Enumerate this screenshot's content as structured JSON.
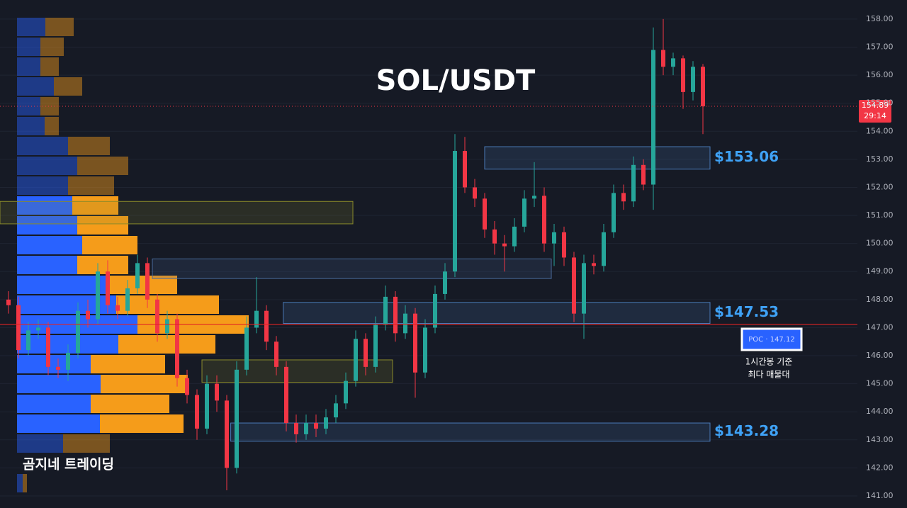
{
  "chart_data": {
    "type": "candlestick",
    "title": "SOL/USDT",
    "watermark": "곰지네 트레이딩",
    "ylim": [
      140.57,
      158.68
    ],
    "yticks": [
      {
        "value": 141,
        "label": "141.00"
      },
      {
        "value": 142,
        "label": "142.00"
      },
      {
        "value": 143,
        "label": "143.00"
      },
      {
        "value": 144,
        "label": "144.00"
      },
      {
        "value": 145,
        "label": "145.00"
      },
      {
        "value": 146,
        "label": "146.00"
      },
      {
        "value": 147,
        "label": "147.00"
      },
      {
        "value": 148,
        "label": "148.00"
      },
      {
        "value": 149,
        "label": "149.00"
      },
      {
        "value": 150,
        "label": "150.00"
      },
      {
        "value": 151,
        "label": "151.00"
      },
      {
        "value": 152,
        "label": "152.00"
      },
      {
        "value": 153,
        "label": "153.00"
      },
      {
        "value": 154,
        "label": "154.00"
      },
      {
        "value": 155,
        "label": "155.00"
      },
      {
        "value": 156,
        "label": "156.00"
      },
      {
        "value": 157,
        "label": "157.00"
      },
      {
        "value": 158,
        "label": "158.00"
      }
    ],
    "up_color": "#26a69a",
    "down_color": "#f23645",
    "open": [
      148.0,
      147.8,
      146.2,
      146.9,
      147.0,
      145.6,
      145.5,
      146.1,
      147.6,
      147.3,
      149.0,
      147.8,
      147.6,
      148.4,
      149.3,
      148.0,
      146.8,
      147.3,
      145.2,
      144.6,
      143.4,
      145.0,
      144.4,
      142.0,
      145.5,
      147.0,
      147.6,
      146.5,
      145.6,
      143.6,
      143.2,
      143.6,
      143.4,
      143.8,
      144.3,
      145.1,
      146.6,
      145.6,
      147.1,
      148.1,
      146.8,
      147.5,
      145.4,
      147.0,
      148.2,
      149.0,
      153.3,
      152.0,
      151.6,
      150.5,
      150.0,
      149.9,
      150.6,
      151.6,
      151.7,
      150.0,
      150.4,
      149.5,
      147.5,
      149.3,
      149.2,
      150.4,
      151.8,
      151.5,
      152.8,
      152.1,
      156.9,
      156.3,
      156.6,
      155.4,
      156.3
    ],
    "high": [
      148.3,
      148.1,
      147.2,
      147.3,
      147.2,
      145.9,
      146.4,
      147.9,
      148.0,
      149.3,
      149.4,
      148.1,
      148.7,
      149.6,
      149.5,
      148.2,
      147.6,
      147.5,
      145.5,
      144.8,
      145.3,
      145.3,
      144.6,
      145.8,
      147.4,
      148.8,
      147.8,
      146.7,
      145.8,
      143.9,
      143.9,
      143.9,
      144.1,
      144.6,
      145.4,
      146.9,
      146.8,
      147.4,
      148.5,
      148.3,
      147.8,
      147.7,
      147.3,
      148.5,
      149.3,
      153.9,
      153.8,
      152.3,
      151.8,
      150.8,
      150.3,
      150.9,
      151.9,
      152.9,
      152.0,
      150.7,
      150.6,
      149.7,
      149.6,
      149.6,
      150.7,
      152.1,
      152.1,
      153.1,
      153.0,
      157.7,
      158.0,
      156.8,
      156.7,
      156.5,
      156.4
    ],
    "low": [
      147.5,
      145.9,
      146.0,
      146.6,
      145.3,
      145.2,
      145.1,
      145.9,
      147.0,
      147.1,
      147.5,
      147.3,
      147.4,
      148.2,
      147.7,
      146.5,
      146.6,
      144.9,
      144.3,
      143.0,
      143.2,
      144.0,
      141.2,
      141.8,
      145.3,
      146.8,
      146.2,
      145.3,
      143.3,
      142.9,
      143.0,
      143.1,
      143.2,
      143.6,
      144.1,
      144.9,
      145.3,
      145.4,
      146.9,
      146.5,
      146.6,
      144.5,
      145.2,
      146.8,
      148.0,
      148.8,
      151.8,
      151.3,
      150.2,
      149.6,
      149.0,
      149.7,
      150.4,
      151.3,
      149.7,
      149.2,
      149.2,
      147.2,
      146.6,
      148.9,
      149.0,
      150.2,
      151.2,
      151.3,
      151.9,
      151.2,
      156.0,
      156.0,
      154.8,
      155.1,
      153.9
    ],
    "close": [
      147.8,
      146.2,
      146.9,
      147.0,
      145.6,
      145.5,
      146.1,
      147.6,
      147.3,
      149.0,
      147.8,
      147.6,
      148.4,
      149.3,
      148.0,
      146.8,
      147.3,
      145.2,
      144.6,
      143.4,
      145.0,
      144.4,
      142.0,
      145.5,
      147.0,
      147.6,
      146.5,
      145.6,
      143.6,
      143.2,
      143.6,
      143.4,
      143.8,
      144.3,
      145.1,
      146.6,
      145.6,
      147.1,
      148.1,
      146.8,
      147.5,
      145.4,
      147.0,
      148.2,
      149.0,
      153.3,
      152.0,
      151.6,
      150.5,
      150.0,
      149.9,
      150.6,
      151.6,
      151.7,
      150.0,
      150.4,
      149.5,
      147.5,
      149.3,
      149.2,
      150.4,
      151.8,
      151.5,
      152.8,
      152.1,
      156.9,
      156.3,
      156.6,
      155.4,
      156.3,
      154.89
    ],
    "volume_profile": {
      "buy_color": "#2962ff",
      "sell_color": "#f59c1a",
      "buy": [
        40,
        33,
        33,
        52,
        33,
        39,
        72,
        85,
        72,
        78,
        85,
        92,
        85,
        126,
        140,
        170,
        143,
        104,
        118,
        104,
        117,
        65,
        0,
        8
      ],
      "sell": [
        40,
        33,
        26,
        40,
        26,
        20,
        59,
        72,
        65,
        65,
        72,
        78,
        72,
        100,
        145,
        157,
        137,
        105,
        123,
        111,
        118,
        66,
        0,
        6
      ],
      "value_area_rows": [
        9,
        20
      ]
    },
    "zones": [
      {
        "value": 153.06,
        "label": "$153.06",
        "high": 153.45,
        "low": 152.65,
        "start": 48,
        "end": 70,
        "color": "#4a7ab8"
      },
      {
        "high": 151.5,
        "low": 150.7,
        "start": 0,
        "end": 34,
        "color": "#8a8a2a"
      },
      {
        "high": 149.45,
        "low": 148.75,
        "start": 14.5,
        "end": 54,
        "color": "#4a6a9a"
      },
      {
        "value": 147.53,
        "label": "$147.53",
        "high": 147.9,
        "low": 147.15,
        "start": 27.7,
        "end": 70,
        "color": "#4a7ab8"
      },
      {
        "high": 145.85,
        "low": 145.05,
        "start": 19.5,
        "end": 38,
        "color": "#8a8a2a"
      },
      {
        "value": 143.28,
        "label": "$143.28",
        "high": 143.6,
        "low": 142.95,
        "start": 22.4,
        "end": 70,
        "color": "#4a7ab8"
      }
    ],
    "poc": {
      "value": 147.12,
      "label": "POC · 147.12",
      "note": [
        "1시간봉 기준",
        "최다 매물대"
      ]
    },
    "last_price": 154.89,
    "countdown": "29:14"
  }
}
